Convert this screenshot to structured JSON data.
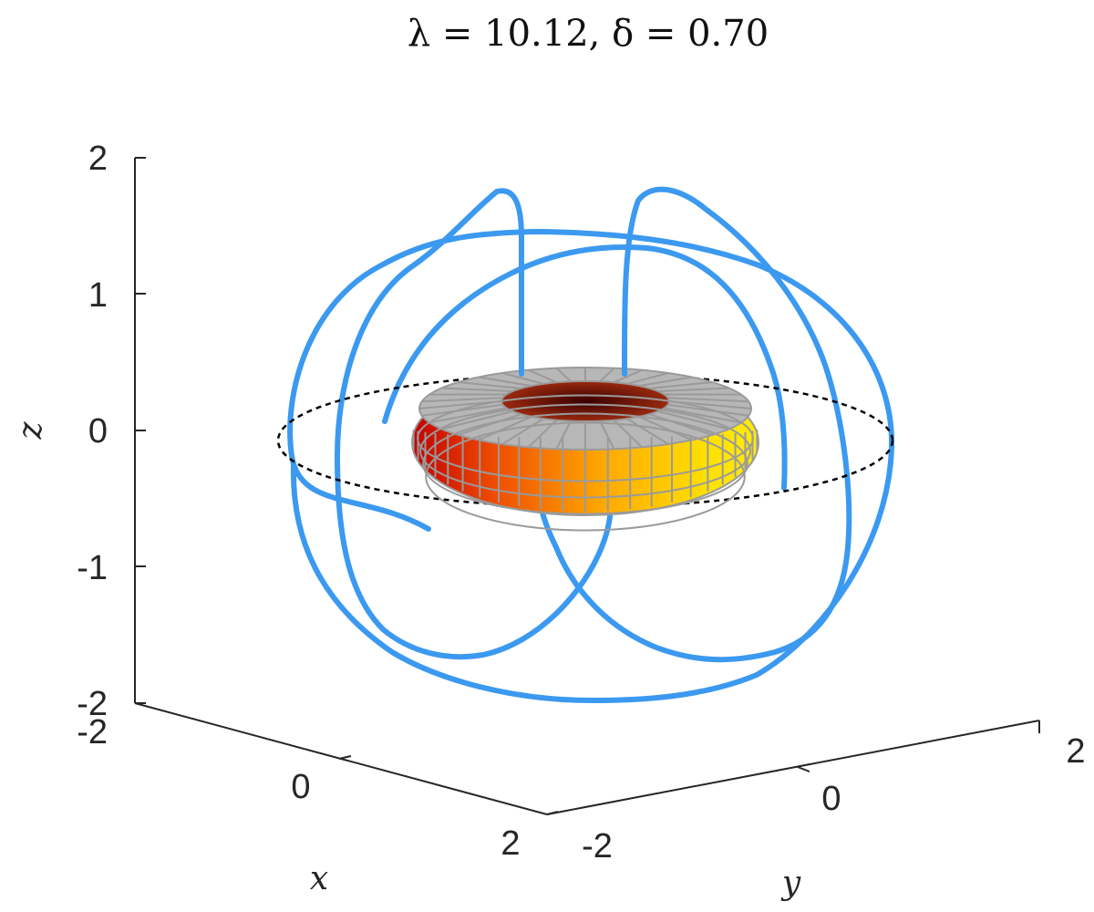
{
  "chart_data": {
    "type": "3d-line-surface",
    "title": "λ = 10.12,    δ = 0.70",
    "xlabel": "x",
    "ylabel": "y",
    "zlabel": "z",
    "xlim": [
      -2,
      2
    ],
    "ylim": [
      -2,
      2
    ],
    "zlim": [
      -2,
      2
    ],
    "x_ticks": [
      "-2",
      "0",
      "2"
    ],
    "y_ticks": [
      "-2",
      "0",
      "2"
    ],
    "z_ticks": [
      "-2",
      "-1",
      "0",
      "1",
      "2"
    ],
    "grid": false,
    "series": [
      {
        "kind": "trajectory",
        "color": "#3b99f0"
      },
      {
        "kind": "torus-surface",
        "colormap_from": "#c40000",
        "colormap_to": "#ffe000",
        "mesh_color": "#9a9a9a"
      },
      {
        "kind": "dashed-circle",
        "color": "#000000"
      }
    ]
  }
}
